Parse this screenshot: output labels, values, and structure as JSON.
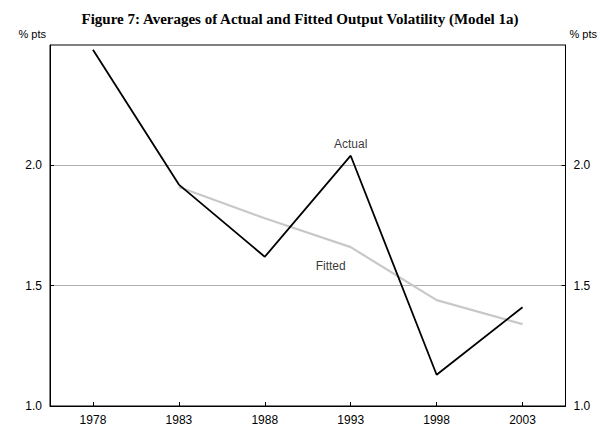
{
  "chart_data": {
    "type": "line",
    "title": "Figure 7: Averages of Actual and Fitted Output Volatility (Model 1a)",
    "ylabel": "% pts",
    "categories": [
      "1978",
      "1983",
      "1988",
      "1993",
      "1998",
      "2003"
    ],
    "series": [
      {
        "name": "Actual",
        "color": "#000000",
        "values": [
          2.48,
          1.92,
          1.62,
          2.04,
          1.13,
          1.41
        ]
      },
      {
        "name": "Fitted",
        "color": "#c8c8c8",
        "values": [
          null,
          1.91,
          1.78,
          1.66,
          1.44,
          1.34
        ]
      }
    ],
    "ylim": [
      1.0,
      2.5
    ],
    "yticks": [
      {
        "value": 1.0,
        "label": "1.0"
      },
      {
        "value": 1.5,
        "label": "1.5"
      },
      {
        "value": 2.0,
        "label": "2.0"
      }
    ],
    "grid": true,
    "annotations": [
      {
        "text": "Actual",
        "x": "1993",
        "y": 2.09
      },
      {
        "text": "Fitted",
        "x": "1993",
        "y": 1.58
      }
    ]
  }
}
